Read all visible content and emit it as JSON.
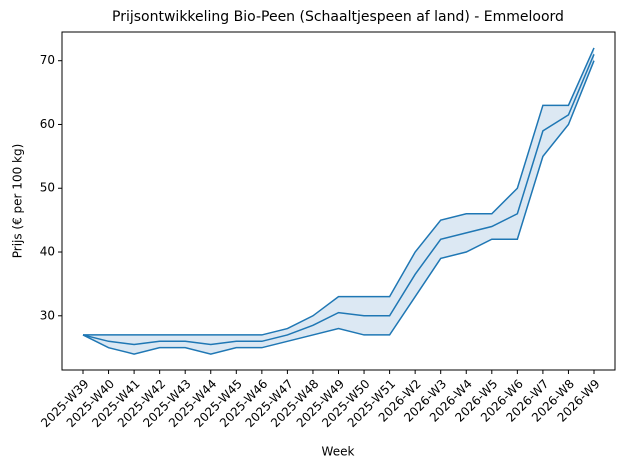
{
  "chart_data": {
    "type": "band-line",
    "title": "Prijsontwikkeling Bio-Peen (Schaaltjespeen af land) - Emmeloord",
    "x_label": "Week",
    "y_label": "Prijs (€ per 100 kg)",
    "categories": [
      "2025-W39",
      "2025-W40",
      "2025-W41",
      "2025-W42",
      "2025-W43",
      "2025-W44",
      "2025-W45",
      "2025-W46",
      "2025-W47",
      "2025-W48",
      "2025-W49",
      "2025-W50",
      "2025-W51",
      "2026-W2",
      "2026-W3",
      "2026-W4",
      "2026-W5",
      "2026-W6",
      "2026-W7",
      "2026-W8",
      "2026-W9"
    ],
    "values": [
      27,
      26,
      25.5,
      26,
      26,
      25.5,
      26,
      26,
      27,
      28.5,
      30.5,
      30,
      30,
      36.5,
      42,
      43,
      44,
      46,
      59,
      61.5,
      71
    ],
    "lower": [
      27,
      25,
      24,
      25,
      25,
      24,
      25,
      25,
      26,
      27,
      28,
      27,
      27,
      33,
      39,
      40,
      42,
      42,
      55,
      60,
      70
    ],
    "upper": [
      27,
      27,
      27,
      27,
      27,
      27,
      27,
      27,
      28,
      30,
      33,
      33,
      33,
      40,
      45,
      46,
      46,
      50,
      63,
      63,
      72
    ],
    "color": "#1f77b4",
    "fill_color": "#dce8f3",
    "ylim": [
      21.5,
      74.5
    ],
    "yticks": [
      30,
      40,
      50,
      60,
      70
    ]
  }
}
